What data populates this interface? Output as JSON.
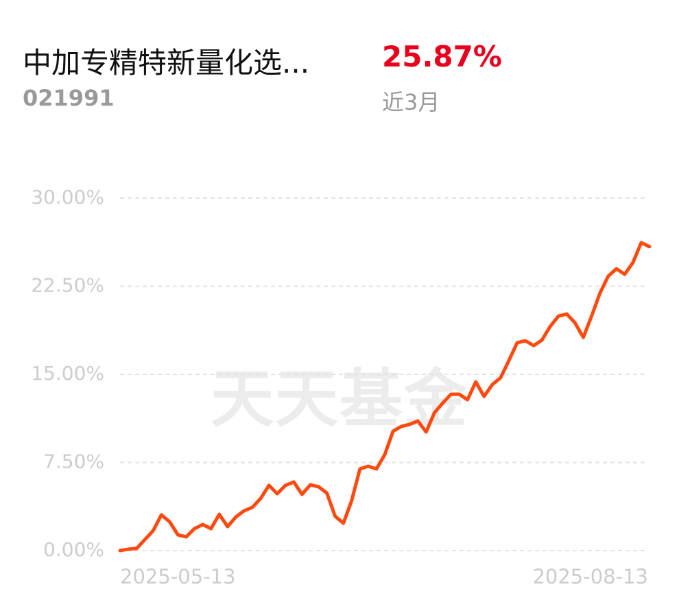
{
  "chart_data": {
    "type": "line",
    "title": "中加专精特新量化选...",
    "subtitle": "021991",
    "headline_value": "25.87%",
    "headline_period": "近3月",
    "watermark": "天天基金",
    "categories": [
      "2025-05-13",
      null,
      null,
      null,
      null,
      null,
      null,
      null,
      null,
      null,
      null,
      null,
      null,
      null,
      null,
      null,
      null,
      null,
      null,
      null,
      null,
      null,
      null,
      null,
      null,
      null,
      null,
      null,
      null,
      null,
      null,
      null,
      null,
      null,
      null,
      null,
      null,
      null,
      null,
      null,
      null,
      null,
      null,
      null,
      null,
      null,
      null,
      null,
      null,
      null,
      null,
      null,
      null,
      null,
      null,
      null,
      null,
      null,
      null,
      null,
      null,
      null,
      null,
      null,
      "2025-08-13"
    ],
    "series": [
      {
        "name": "近3月",
        "color": "#ff4a0f",
        "values": [
          0,
          0.12,
          0.18,
          0.93,
          1.69,
          3.04,
          2.45,
          1.34,
          1.17,
          1.87,
          2.22,
          1.87,
          3.09,
          2.04,
          2.86,
          3.39,
          3.68,
          4.44,
          5.55,
          4.84,
          5.55,
          5.84,
          4.79,
          5.6,
          5.43,
          4.9,
          2.92,
          2.33,
          4.26,
          6.95,
          7.18,
          6.95,
          8.17,
          10.16,
          10.57,
          10.74,
          11.03,
          10.1,
          11.73,
          12.55,
          13.31,
          13.31,
          12.84,
          14.36,
          13.13,
          14.13,
          14.71,
          16.17,
          17.69,
          17.86,
          17.45,
          17.92,
          19.09,
          19.96,
          20.14,
          19.38,
          18.15,
          19.96,
          21.89,
          23.35,
          23.99,
          23.52,
          24.52,
          26.21,
          25.87
        ]
      }
    ],
    "ylim": [
      0,
      30
    ],
    "yticks": [
      {
        "value": 0,
        "label": "0.00%"
      },
      {
        "value": 7.5,
        "label": "7.50%"
      },
      {
        "value": 15,
        "label": "15.00%"
      },
      {
        "value": 22.5,
        "label": "22.50%"
      },
      {
        "value": 30,
        "label": "30.00%"
      }
    ],
    "grid": true
  }
}
